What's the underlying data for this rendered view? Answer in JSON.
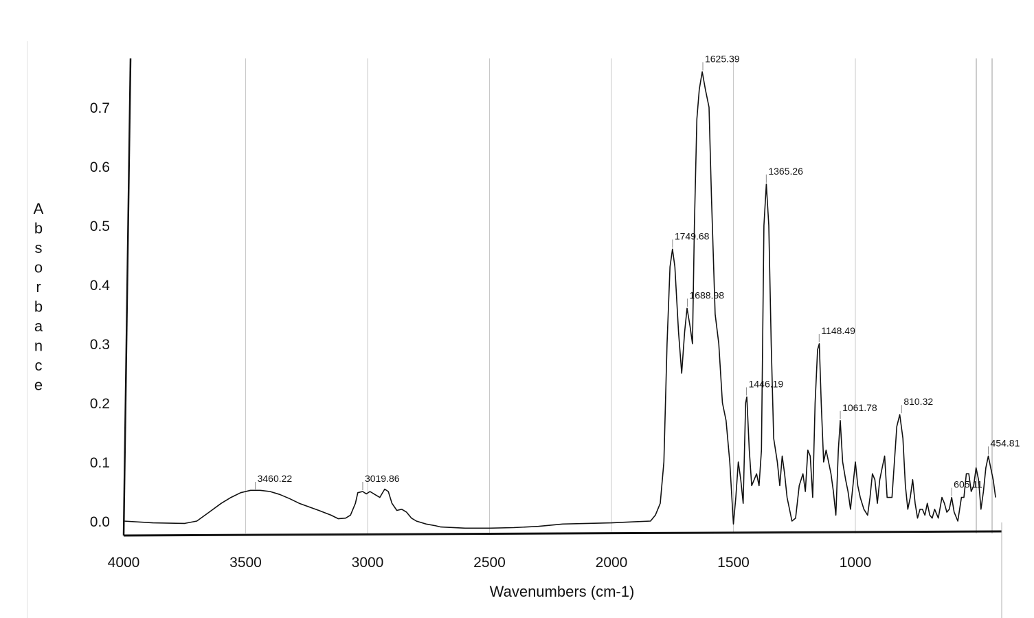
{
  "chart_data": {
    "type": "line",
    "title": "",
    "xlabel": "Wavenumbers (cm-1)",
    "ylabel": "Absorbance",
    "xlim": [
      4000,
      400
    ],
    "ylim": [
      -0.02,
      0.79
    ],
    "x_reversed": true,
    "grid": "vertical",
    "x_ticks": [
      {
        "value": 4000,
        "label": "4000"
      },
      {
        "value": 3500,
        "label": "3500"
      },
      {
        "value": 3000,
        "label": "3000"
      },
      {
        "value": 2500,
        "label": "2500"
      },
      {
        "value": 2000,
        "label": "2000"
      },
      {
        "value": 1500,
        "label": "1500"
      },
      {
        "value": 1000,
        "label": "1000"
      }
    ],
    "y_ticks": [
      {
        "value": 0.0,
        "label": "0.0"
      },
      {
        "value": 0.1,
        "label": "0.1"
      },
      {
        "value": 0.2,
        "label": "0.2"
      },
      {
        "value": 0.3,
        "label": "0.3"
      },
      {
        "value": 0.4,
        "label": "0.4"
      },
      {
        "value": 0.5,
        "label": "0.5"
      },
      {
        "value": 0.6,
        "label": "0.6"
      },
      {
        "value": 0.7,
        "label": "0.7"
      }
    ],
    "peaks": [
      {
        "x": 3460.22,
        "y": 0.05,
        "label": "3460.22"
      },
      {
        "x": 3019.86,
        "y": 0.05,
        "label": "3019.86"
      },
      {
        "x": 1749.68,
        "y": 0.46,
        "label": "1749.68"
      },
      {
        "x": 1688.98,
        "y": 0.36,
        "label": "1688.98"
      },
      {
        "x": 1625.39,
        "y": 0.76,
        "label": "1625.39"
      },
      {
        "x": 1446.19,
        "y": 0.21,
        "label": "1446.19"
      },
      {
        "x": 1365.26,
        "y": 0.57,
        "label": "1365.26"
      },
      {
        "x": 1148.49,
        "y": 0.3,
        "label": "1148.49"
      },
      {
        "x": 1061.78,
        "y": 0.17,
        "label": "1061.78"
      },
      {
        "x": 810.32,
        "y": 0.18,
        "label": "810.32"
      },
      {
        "x": 605.11,
        "y": 0.04,
        "label": "605.11"
      },
      {
        "x": 454.81,
        "y": 0.11,
        "label": "454.81"
      }
    ],
    "series": [
      {
        "values": [
          [
            4000,
            0.0
          ],
          [
            3880,
            -0.003
          ],
          [
            3750,
            -0.004
          ],
          [
            3700,
            0.0
          ],
          [
            3650,
            0.015
          ],
          [
            3600,
            0.03
          ],
          [
            3560,
            0.04
          ],
          [
            3520,
            0.048
          ],
          [
            3480,
            0.052
          ],
          [
            3440,
            0.052
          ],
          [
            3400,
            0.05
          ],
          [
            3360,
            0.045
          ],
          [
            3320,
            0.038
          ],
          [
            3280,
            0.03
          ],
          [
            3240,
            0.024
          ],
          [
            3200,
            0.018
          ],
          [
            3150,
            0.01
          ],
          [
            3120,
            0.004
          ],
          [
            3090,
            0.005
          ],
          [
            3070,
            0.01
          ],
          [
            3050,
            0.03
          ],
          [
            3040,
            0.048
          ],
          [
            3020,
            0.05
          ],
          [
            3005,
            0.046
          ],
          [
            2990,
            0.05
          ],
          [
            2970,
            0.045
          ],
          [
            2950,
            0.04
          ],
          [
            2930,
            0.054
          ],
          [
            2915,
            0.05
          ],
          [
            2900,
            0.03
          ],
          [
            2880,
            0.018
          ],
          [
            2860,
            0.02
          ],
          [
            2840,
            0.015
          ],
          [
            2820,
            0.005
          ],
          [
            2800,
            0.0
          ],
          [
            2760,
            -0.005
          ],
          [
            2720,
            -0.008
          ],
          [
            2700,
            -0.01
          ],
          [
            2600,
            -0.012
          ],
          [
            2500,
            -0.012
          ],
          [
            2400,
            -0.011
          ],
          [
            2300,
            -0.009
          ],
          [
            2200,
            -0.005
          ],
          [
            2100,
            -0.004
          ],
          [
            2000,
            -0.003
          ],
          [
            1900,
            -0.001
          ],
          [
            1840,
            0.0
          ],
          [
            1820,
            0.01
          ],
          [
            1800,
            0.03
          ],
          [
            1785,
            0.1
          ],
          [
            1772,
            0.3
          ],
          [
            1760,
            0.43
          ],
          [
            1750,
            0.46
          ],
          [
            1740,
            0.43
          ],
          [
            1725,
            0.32
          ],
          [
            1712,
            0.25
          ],
          [
            1700,
            0.32
          ],
          [
            1690,
            0.36
          ],
          [
            1678,
            0.33
          ],
          [
            1668,
            0.3
          ],
          [
            1660,
            0.5
          ],
          [
            1650,
            0.68
          ],
          [
            1640,
            0.73
          ],
          [
            1628,
            0.76
          ],
          [
            1615,
            0.73
          ],
          [
            1600,
            0.7
          ],
          [
            1590,
            0.55
          ],
          [
            1575,
            0.35
          ],
          [
            1560,
            0.3
          ],
          [
            1545,
            0.2
          ],
          [
            1530,
            0.17
          ],
          [
            1515,
            0.1
          ],
          [
            1500,
            -0.005
          ],
          [
            1490,
            0.04
          ],
          [
            1480,
            0.1
          ],
          [
            1470,
            0.07
          ],
          [
            1460,
            0.03
          ],
          [
            1450,
            0.2
          ],
          [
            1445,
            0.21
          ],
          [
            1435,
            0.12
          ],
          [
            1425,
            0.06
          ],
          [
            1415,
            0.07
          ],
          [
            1405,
            0.08
          ],
          [
            1395,
            0.06
          ],
          [
            1385,
            0.12
          ],
          [
            1375,
            0.5
          ],
          [
            1365,
            0.57
          ],
          [
            1355,
            0.5
          ],
          [
            1345,
            0.3
          ],
          [
            1335,
            0.14
          ],
          [
            1320,
            0.1
          ],
          [
            1310,
            0.06
          ],
          [
            1300,
            0.11
          ],
          [
            1290,
            0.08
          ],
          [
            1280,
            0.04
          ],
          [
            1260,
            0.0
          ],
          [
            1245,
            0.005
          ],
          [
            1230,
            0.06
          ],
          [
            1215,
            0.08
          ],
          [
            1205,
            0.05
          ],
          [
            1195,
            0.12
          ],
          [
            1185,
            0.11
          ],
          [
            1175,
            0.04
          ],
          [
            1165,
            0.2
          ],
          [
            1155,
            0.29
          ],
          [
            1148,
            0.3
          ],
          [
            1140,
            0.2
          ],
          [
            1130,
            0.1
          ],
          [
            1120,
            0.12
          ],
          [
            1110,
            0.1
          ],
          [
            1100,
            0.08
          ],
          [
            1090,
            0.05
          ],
          [
            1080,
            0.01
          ],
          [
            1070,
            0.12
          ],
          [
            1062,
            0.17
          ],
          [
            1052,
            0.1
          ],
          [
            1040,
            0.07
          ],
          [
            1030,
            0.05
          ],
          [
            1020,
            0.02
          ],
          [
            1010,
            0.06
          ],
          [
            1000,
            0.1
          ],
          [
            990,
            0.06
          ],
          [
            980,
            0.04
          ],
          [
            965,
            0.02
          ],
          [
            950,
            0.01
          ],
          [
            940,
            0.04
          ],
          [
            930,
            0.08
          ],
          [
            920,
            0.07
          ],
          [
            910,
            0.03
          ],
          [
            900,
            0.07
          ],
          [
            890,
            0.09
          ],
          [
            880,
            0.11
          ],
          [
            870,
            0.04
          ],
          [
            860,
            0.04
          ],
          [
            850,
            0.04
          ],
          [
            840,
            0.1
          ],
          [
            830,
            0.16
          ],
          [
            818,
            0.18
          ],
          [
            805,
            0.14
          ],
          [
            795,
            0.06
          ],
          [
            785,
            0.02
          ],
          [
            775,
            0.04
          ],
          [
            765,
            0.07
          ],
          [
            755,
            0.03
          ],
          [
            745,
            0.005
          ],
          [
            735,
            0.02
          ],
          [
            725,
            0.02
          ],
          [
            715,
            0.01
          ],
          [
            705,
            0.03
          ],
          [
            695,
            0.01
          ],
          [
            685,
            0.005
          ],
          [
            675,
            0.02
          ],
          [
            660,
            0.005
          ],
          [
            645,
            0.04
          ],
          [
            635,
            0.03
          ],
          [
            625,
            0.015
          ],
          [
            615,
            0.02
          ],
          [
            605,
            0.04
          ],
          [
            595,
            0.015
          ],
          [
            580,
            0.0
          ],
          [
            565,
            0.04
          ],
          [
            555,
            0.04
          ],
          [
            545,
            0.08
          ],
          [
            535,
            0.08
          ],
          [
            525,
            0.05
          ],
          [
            515,
            0.06
          ],
          [
            505,
            0.09
          ],
          [
            495,
            0.07
          ],
          [
            485,
            0.02
          ],
          [
            475,
            0.05
          ],
          [
            465,
            0.09
          ],
          [
            455,
            0.11
          ],
          [
            445,
            0.09
          ],
          [
            435,
            0.07
          ],
          [
            425,
            0.04
          ]
        ]
      }
    ]
  }
}
